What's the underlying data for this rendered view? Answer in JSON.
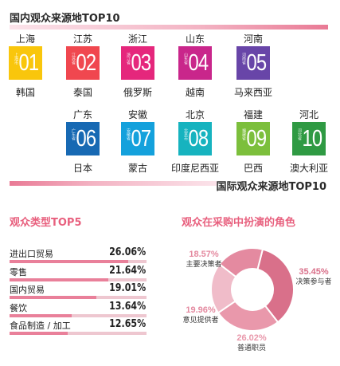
{
  "domestic": {
    "title": "国内观众来源地TOP10",
    "items": [
      {
        "province": "上海",
        "rank": "01",
        "tag": "上海市",
        "color": "#f9c60c",
        "country": "韩国"
      },
      {
        "province": "江苏",
        "rank": "02",
        "tag": "江苏省",
        "color": "#f0474f",
        "country": "泰国"
      },
      {
        "province": "浙江",
        "rank": "03",
        "tag": "浙江省",
        "color": "#e5277c",
        "country": "俄罗斯"
      },
      {
        "province": "山东",
        "rank": "04",
        "tag": "山东省",
        "color": "#c9268b",
        "country": "越南"
      },
      {
        "province": "河南",
        "rank": "05",
        "tag": "河南省",
        "color": "#6845a8",
        "country": "马来西亚"
      },
      {
        "province": "广东",
        "rank": "06",
        "tag": "广东省",
        "color": "#1769b3",
        "country": "日本"
      },
      {
        "province": "安徽",
        "rank": "07",
        "tag": "安徽省",
        "color": "#14a1dc",
        "country": "蒙古"
      },
      {
        "province": "北京",
        "rank": "08",
        "tag": "北京市",
        "color": "#16b3bf",
        "country": "印度尼西亚"
      },
      {
        "province": "福建",
        "rank": "09",
        "tag": "福建省",
        "color": "#7cbf3c",
        "country": "巴西"
      },
      {
        "province": "河北",
        "rank": "10",
        "tag": "河北省",
        "color": "#2f9a43",
        "country": "澳大利亚"
      }
    ]
  },
  "international": {
    "title": "国际观众来源地TOP10"
  },
  "chart_data": [
    {
      "type": "bar",
      "title": "观众类型TOP5",
      "categories": [
        "进出口贸易",
        "零售",
        "国内贸易",
        "餐饮",
        "食品制造 / 加工"
      ],
      "values": [
        26.06,
        21.64,
        19.01,
        13.64,
        12.65
      ],
      "labels": [
        "26.06%",
        "21.64%",
        "19.01%",
        "13.64%",
        "12.65%"
      ],
      "unit": "%"
    },
    {
      "type": "pie",
      "title": "观众在采购中扮演的角色",
      "categories": [
        "决策参与者",
        "普通职员",
        "意见提供者",
        "主要决策者"
      ],
      "values": [
        35.45,
        26.02,
        19.96,
        18.57
      ],
      "labels": [
        "35.45%",
        "26.02%",
        "19.96%",
        "18.57%"
      ],
      "colors": [
        "#d9708a",
        "#e998ab",
        "#f0bcc9",
        "#e48aa0"
      ]
    }
  ],
  "colors": {
    "accent_pink": "#e8607e",
    "bar_fill": "#e9809a",
    "bar_track": "#eec7d0"
  }
}
